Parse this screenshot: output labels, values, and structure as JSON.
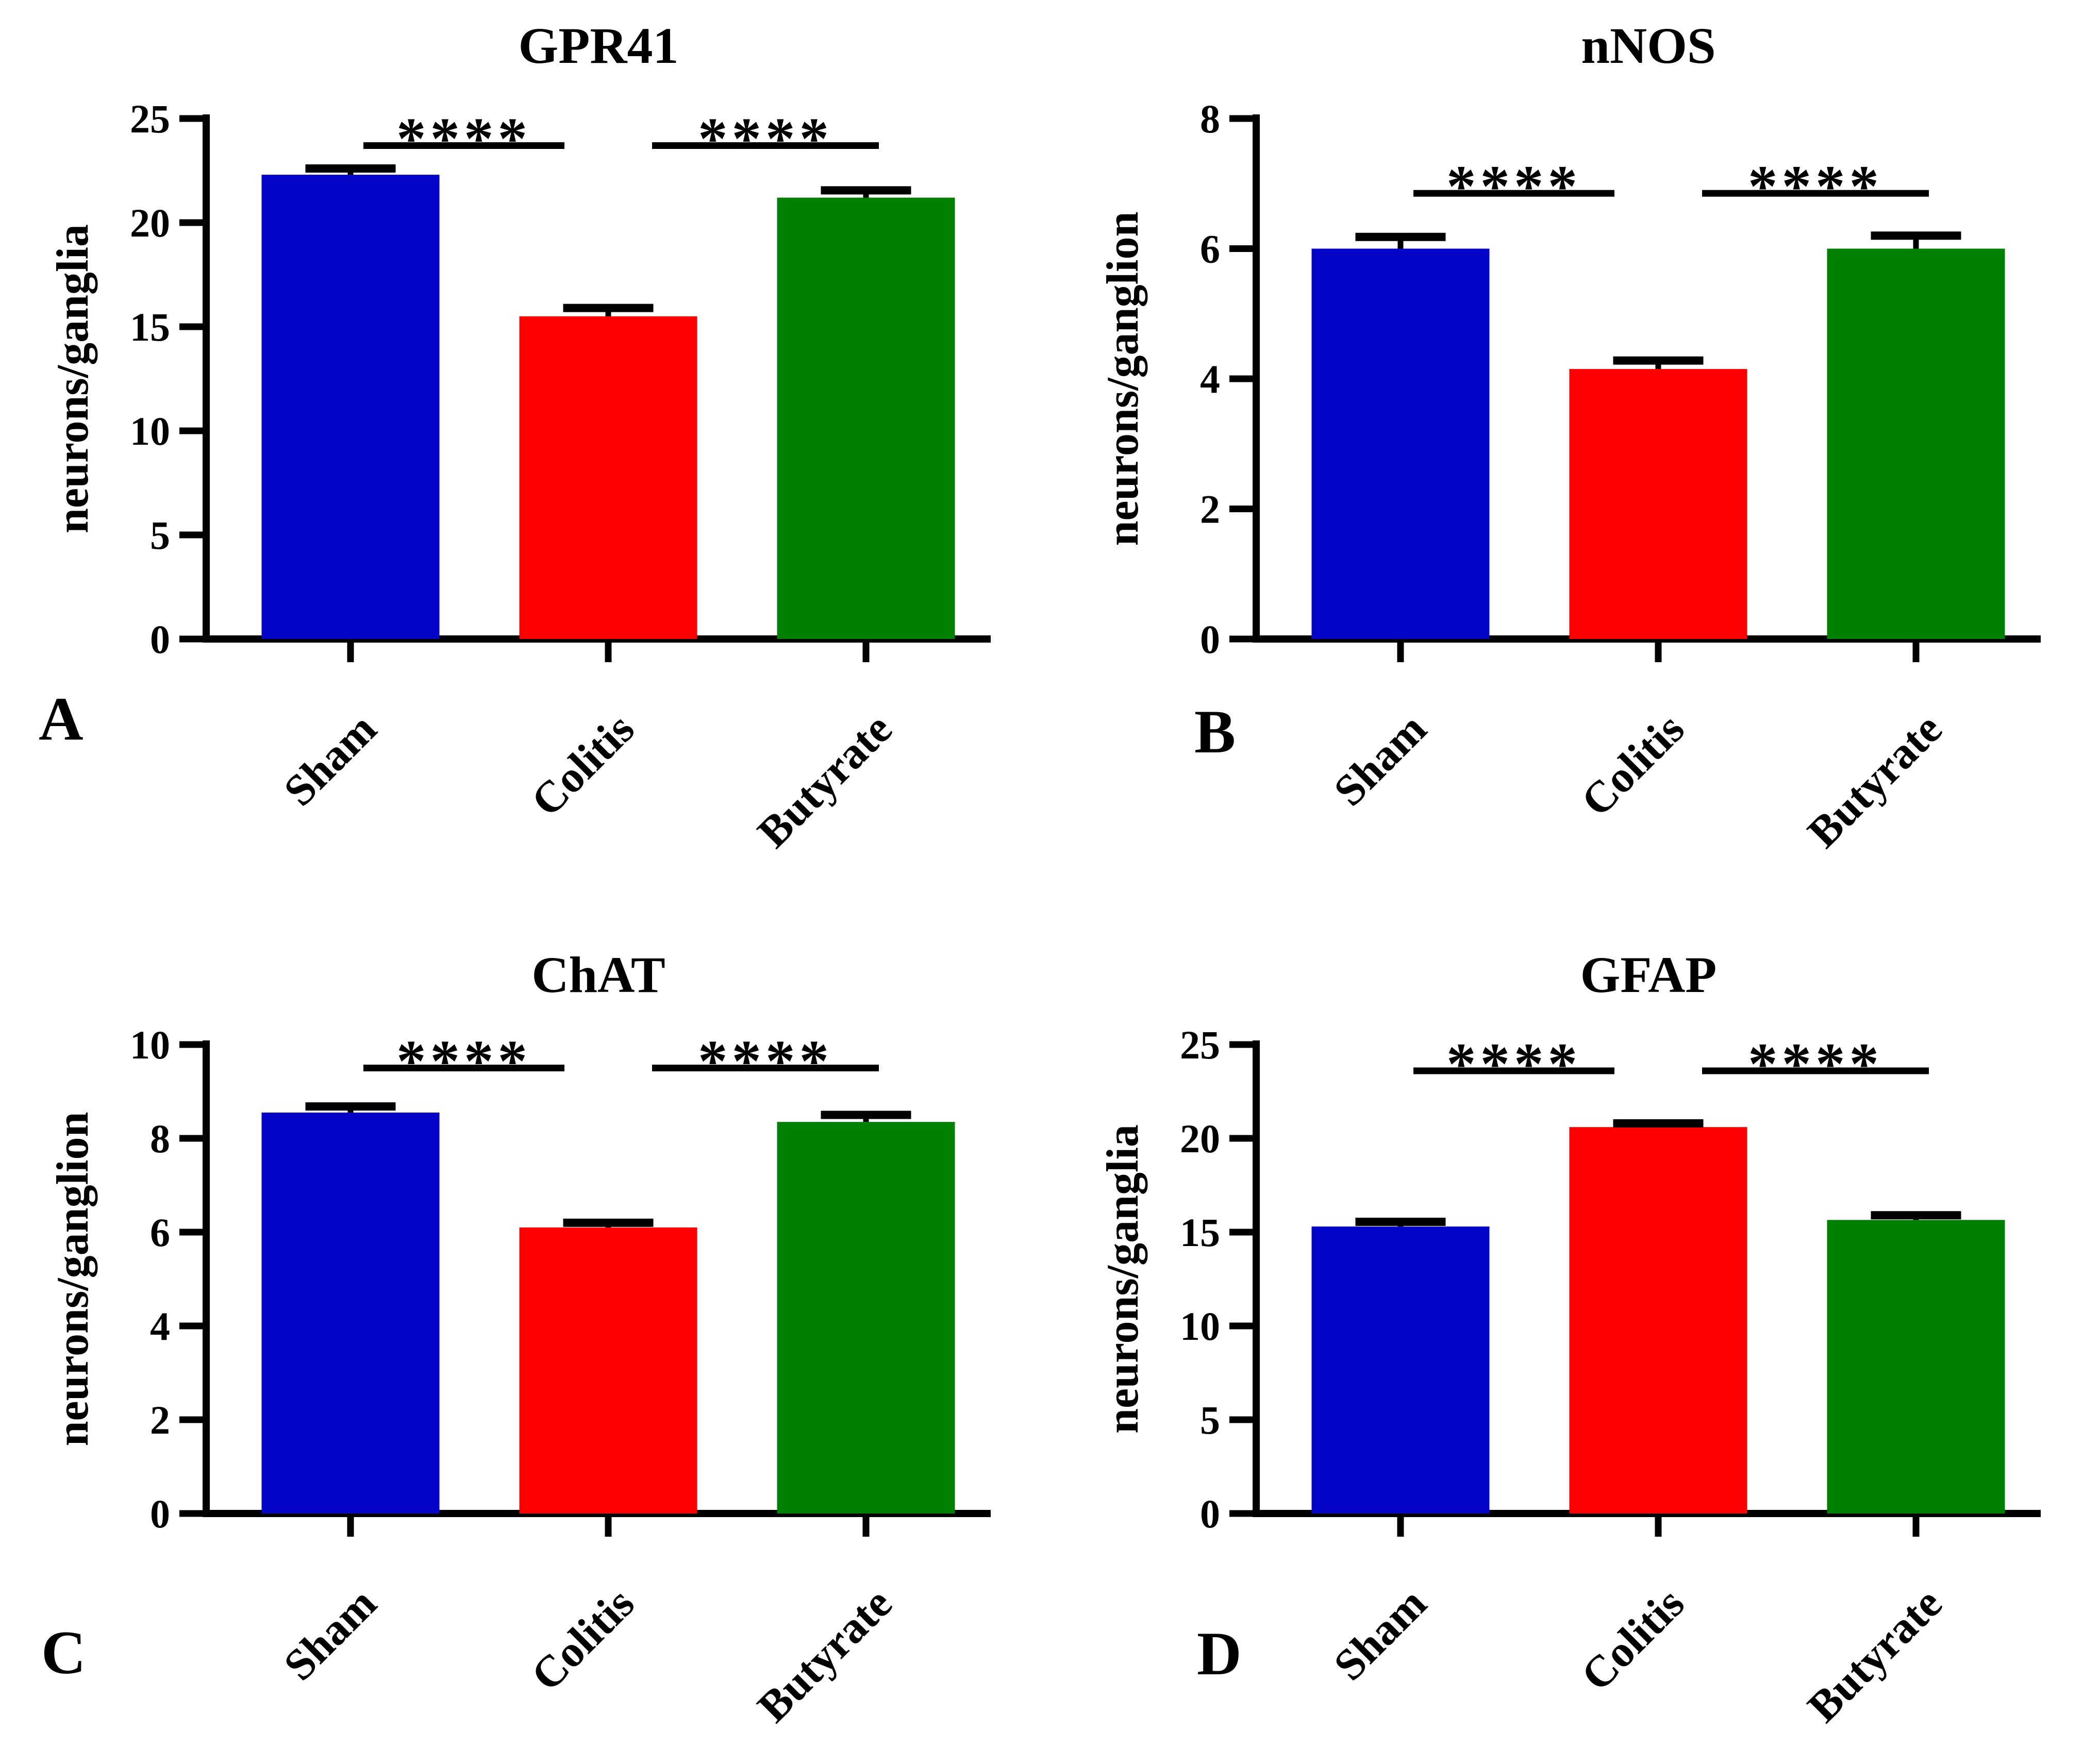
{
  "figure": {
    "background": "#FFFFFF",
    "axis_color": "#000000",
    "text_color": "#000000"
  },
  "chart_data": [
    {
      "type": "bar",
      "panel_letter": "A",
      "title": "GPR41",
      "xlabel": "",
      "ylabel": "neurons/ganglia",
      "categories": [
        "Sham",
        "Colitis",
        "Butyrate"
      ],
      "values": [
        22.3,
        15.5,
        21.2
      ],
      "errors_plus": [
        0.3,
        0.4,
        0.35
      ],
      "bar_colors": [
        "#0505C8",
        "#FF0000",
        "#008000"
      ],
      "ylim": [
        0,
        25
      ],
      "yticks": [
        0,
        5,
        10,
        15,
        20,
        25
      ],
      "grid": "off",
      "legend": "none",
      "significance": [
        {
          "pair": [
            0,
            1
          ],
          "label": "****",
          "line_y": 23.7
        },
        {
          "pair": [
            1,
            2
          ],
          "label": "****",
          "line_y": 23.7
        }
      ],
      "layout": {
        "plot_top": 230,
        "title_y": 122,
        "letter_x": 75,
        "letter_y": 1435
      }
    },
    {
      "type": "bar",
      "panel_letter": "B",
      "title": "nNOS",
      "xlabel": "",
      "ylabel": "neurons/ganglion",
      "categories": [
        "Sham",
        "Colitis",
        "Butyrate"
      ],
      "values": [
        6.0,
        4.15,
        6.0
      ],
      "errors_plus": [
        0.18,
        0.13,
        0.2
      ],
      "bar_colors": [
        "#0505C8",
        "#FF0000",
        "#008000"
      ],
      "ylim": [
        0,
        8
      ],
      "yticks": [
        0,
        2,
        4,
        6,
        8
      ],
      "grid": "off",
      "legend": "none",
      "significance": [
        {
          "pair": [
            0,
            1
          ],
          "label": "****",
          "line_y": 6.85
        },
        {
          "pair": [
            1,
            2
          ],
          "label": "****",
          "line_y": 6.85
        }
      ],
      "layout": {
        "plot_top": 230,
        "title_y": 122,
        "letter_x": 280,
        "letter_y": 1460
      }
    },
    {
      "type": "bar",
      "panel_letter": "C",
      "title": "ChAT",
      "xlabel": "",
      "ylabel": "neurons/ganglion",
      "categories": [
        "Sham",
        "Colitis",
        "Butyrate"
      ],
      "values": [
        8.55,
        6.1,
        8.35
      ],
      "errors_plus": [
        0.13,
        0.1,
        0.15
      ],
      "bar_colors": [
        "#0505C8",
        "#FF0000",
        "#008000"
      ],
      "ylim": [
        0,
        10
      ],
      "yticks": [
        0,
        2,
        4,
        6,
        8,
        10
      ],
      "grid": "off",
      "legend": "none",
      "significance": [
        {
          "pair": [
            0,
            1
          ],
          "label": "****",
          "line_y": 9.5
        },
        {
          "pair": [
            1,
            2
          ],
          "label": "****",
          "line_y": 9.5
        }
      ],
      "layout": {
        "plot_top": 330,
        "title_y": 228,
        "letter_x": 80,
        "letter_y": 1550
      }
    },
    {
      "type": "bar",
      "panel_letter": "D",
      "title": "GFAP",
      "xlabel": "",
      "ylabel": "neurons/ganglia",
      "categories": [
        "Sham",
        "Colitis",
        "Butyrate"
      ],
      "values": [
        15.3,
        20.6,
        15.65
      ],
      "errors_plus": [
        0.25,
        0.2,
        0.25
      ],
      "bar_colors": [
        "#0505C8",
        "#FF0000",
        "#008000"
      ],
      "ylim": [
        0,
        25
      ],
      "yticks": [
        0,
        5,
        10,
        15,
        20,
        25
      ],
      "grid": "off",
      "legend": "none",
      "significance": [
        {
          "pair": [
            0,
            1
          ],
          "label": "****",
          "line_y": 23.6
        },
        {
          "pair": [
            1,
            2
          ],
          "label": "****",
          "line_y": 23.6
        }
      ],
      "layout": {
        "plot_top": 330,
        "title_y": 228,
        "letter_x": 285,
        "letter_y": 1552
      }
    }
  ]
}
